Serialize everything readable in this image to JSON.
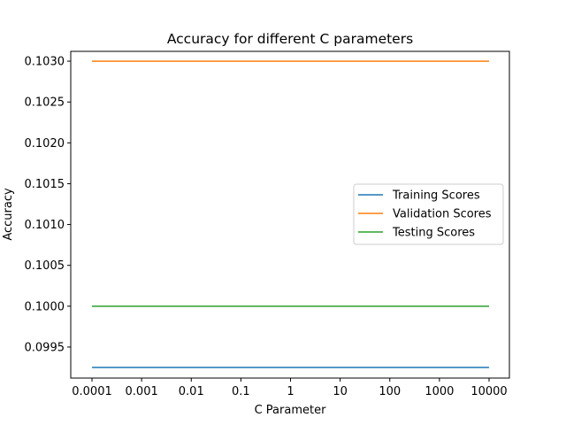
{
  "chart_data": {
    "type": "line",
    "title": "Accuracy for different C parameters",
    "xlabel": "C Parameter",
    "ylabel": "Accuracy",
    "categories": [
      "0.0001",
      "0.001",
      "0.01",
      "0.1",
      "1",
      "10",
      "100",
      "1000",
      "10000"
    ],
    "x_scale": "categorical (log-spaced C values)",
    "ylim": [
      0.09912,
      0.10312
    ],
    "yticks": [
      "0.0995",
      "0.1000",
      "0.1005",
      "0.1010",
      "0.1015",
      "0.1020",
      "0.1025",
      "0.1030"
    ],
    "grid": false,
    "legend_position": "center-right",
    "series": [
      {
        "name": "Training Scores",
        "color": "#1f77b4",
        "values": [
          0.09925,
          0.09925,
          0.09925,
          0.09925,
          0.09925,
          0.09925,
          0.09925,
          0.09925,
          0.09925
        ]
      },
      {
        "name": "Validation Scores",
        "color": "#ff7f0e",
        "values": [
          0.103,
          0.103,
          0.103,
          0.103,
          0.103,
          0.103,
          0.103,
          0.103,
          0.103
        ]
      },
      {
        "name": "Testing Scores",
        "color": "#2ca02c",
        "values": [
          0.1,
          0.1,
          0.1,
          0.1,
          0.1,
          0.1,
          0.1,
          0.1,
          0.1
        ]
      }
    ]
  }
}
